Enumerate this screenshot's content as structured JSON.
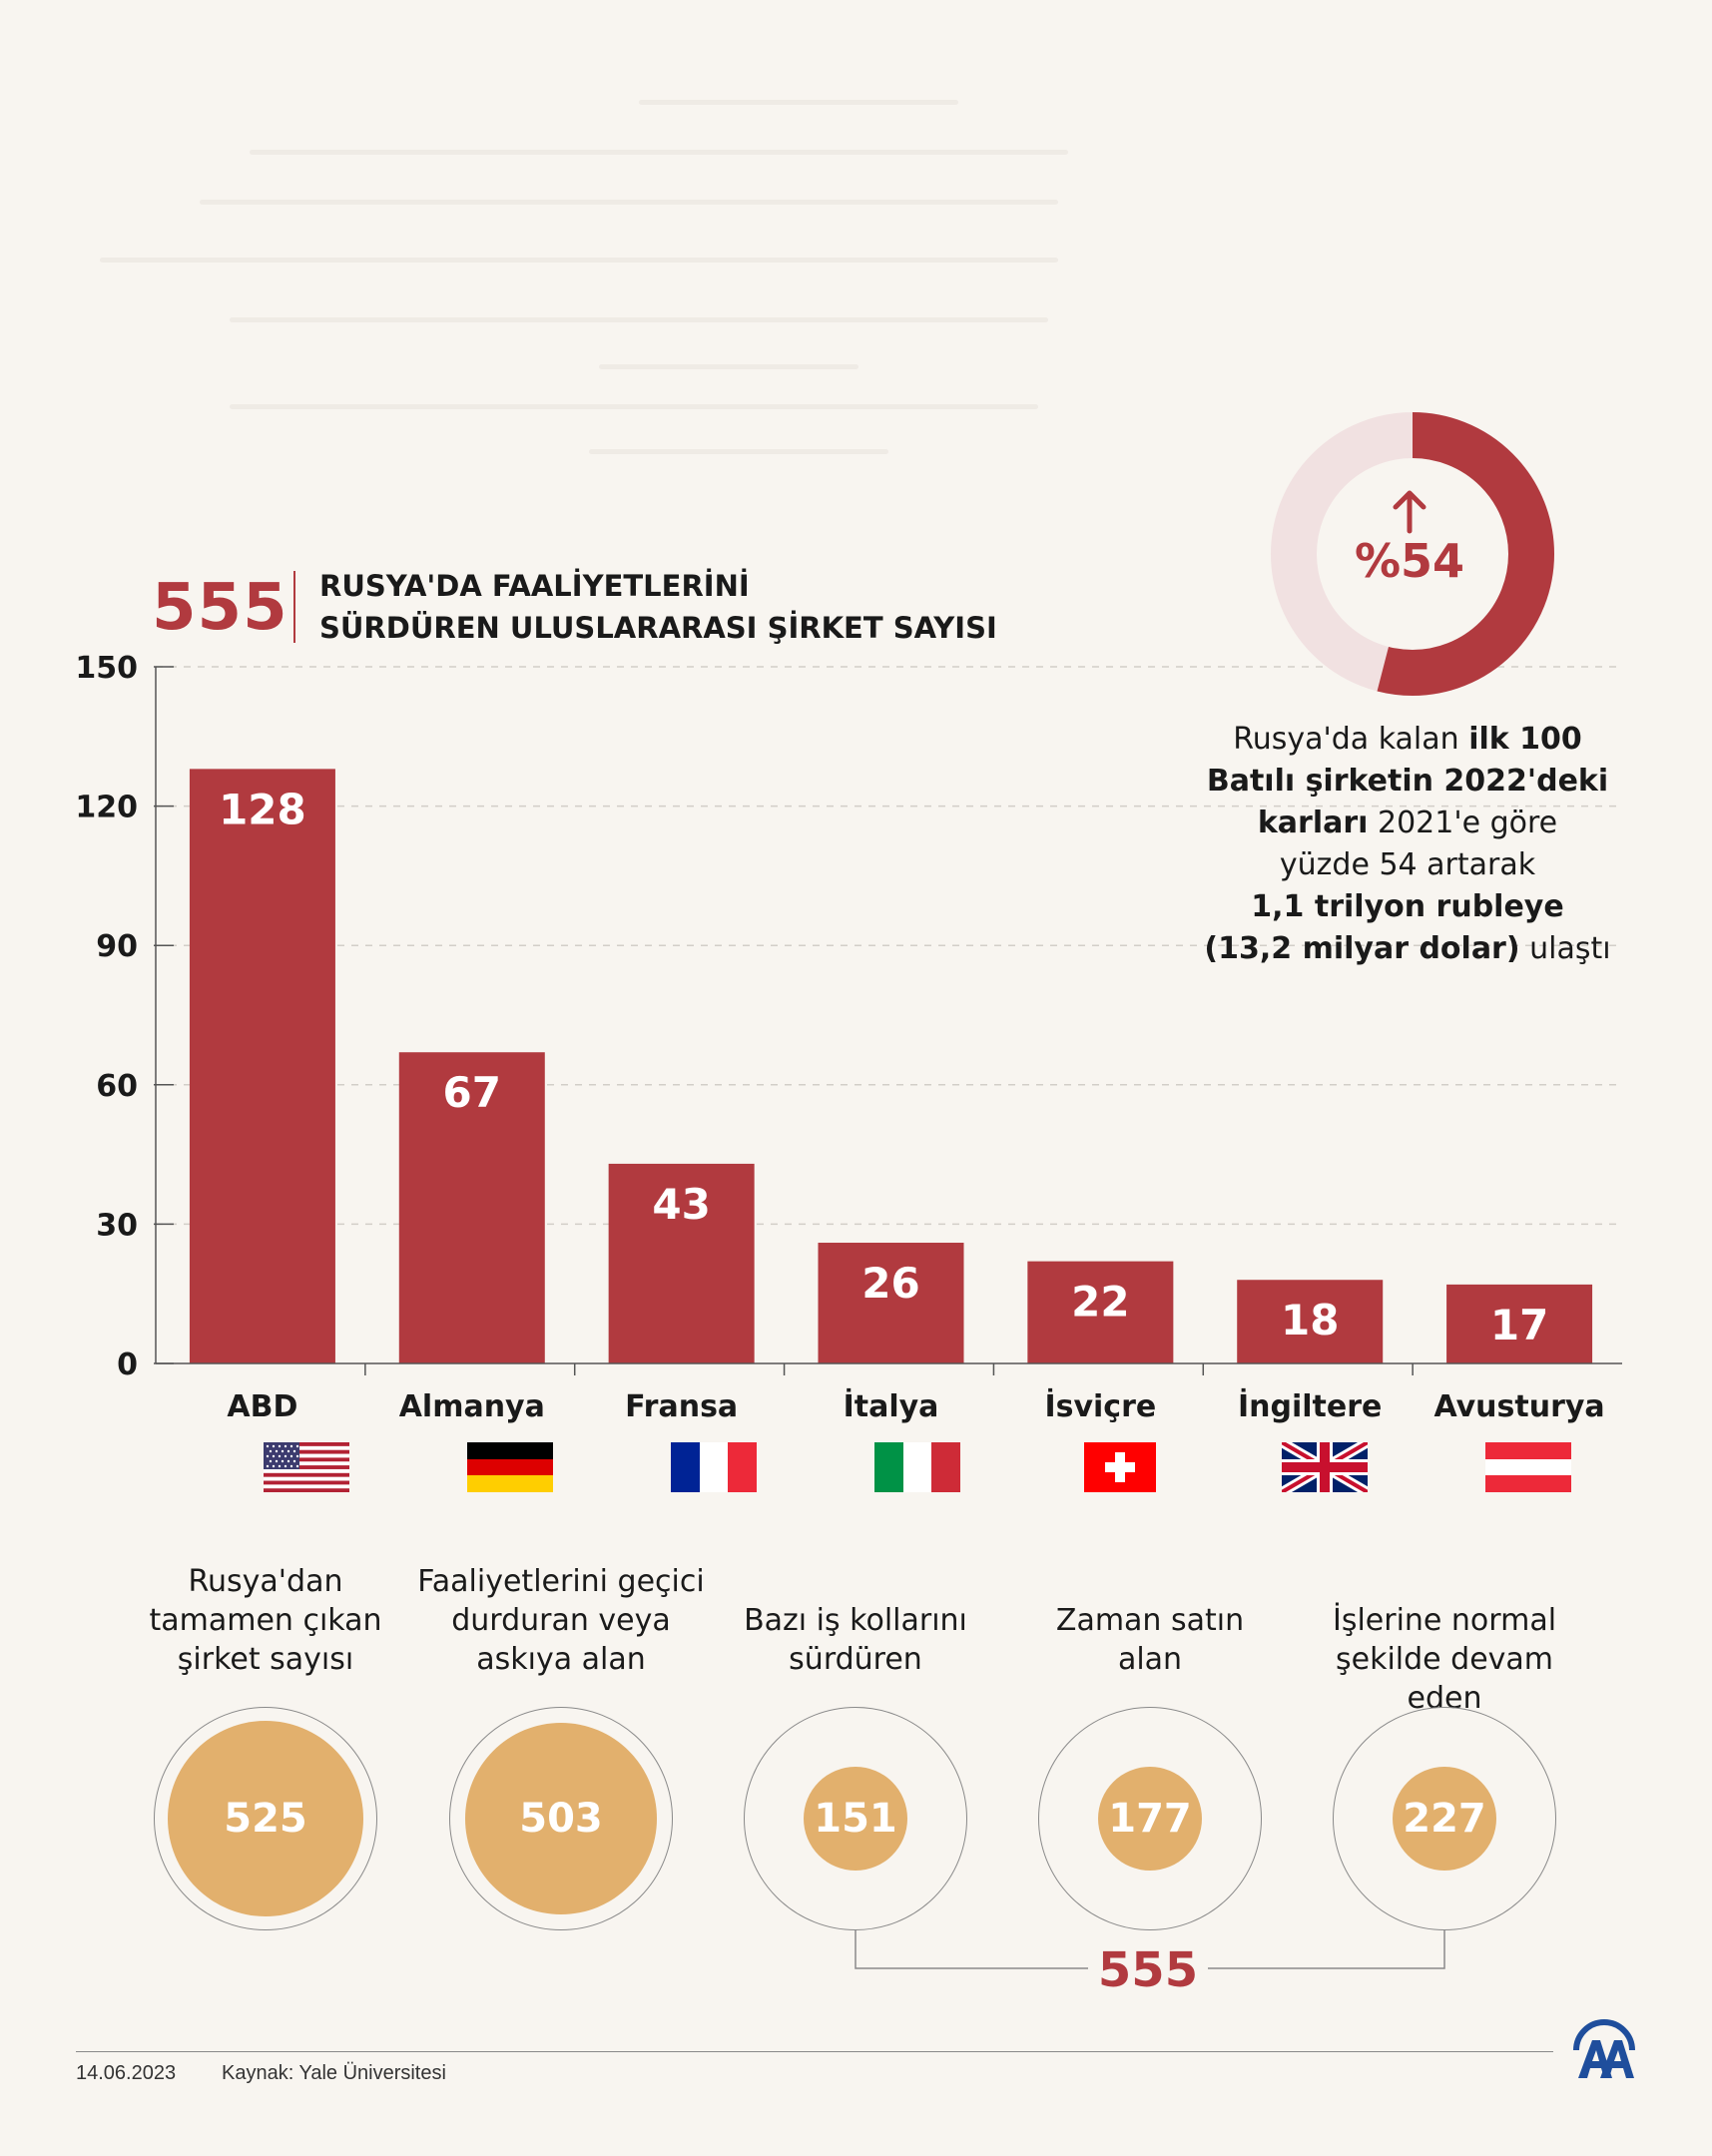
{
  "header": {
    "total": "555",
    "title_line1": "RUSYA'DA FAALİYETLERİNİ",
    "title_line2": "SÜRDÜREN ULUSLARARASI ŞİRKET SAYISI"
  },
  "chart_data": {
    "type": "bar",
    "title": "RUSYA'DA FAALİYETLERİNİ SÜRDÜREN ULUSLARARASI ŞİRKET SAYISI",
    "categories": [
      "ABD",
      "Almanya",
      "Fransa",
      "İtalya",
      "İsviçre",
      "İngiltere",
      "Avusturya"
    ],
    "values": [
      128,
      67,
      43,
      26,
      22,
      18,
      17
    ],
    "value_labels": [
      "128",
      "67",
      "43",
      "26",
      "22",
      "18",
      "17"
    ],
    "ylim": [
      0,
      150
    ],
    "yticks": [
      0,
      30,
      60,
      90,
      120,
      150
    ],
    "ytick_labels": [
      "0",
      "30",
      "60",
      "90",
      "120",
      "150"
    ],
    "grid": true,
    "bar_color": "#b13a3f"
  },
  "flags": [
    "us-flag-icon",
    "germany-flag-icon",
    "france-flag-icon",
    "italy-flag-icon",
    "switzerland-flag-icon",
    "uk-flag-icon",
    "austria-flag-icon"
  ],
  "donut": {
    "label": "%54",
    "percent": 54,
    "color": "#b13a3f",
    "track_color": "#f1e1e1",
    "icon": "arrow-up-icon"
  },
  "note": {
    "l1_a": "Rusya'da kalan ",
    "l1_b": "ilk 100",
    "l2_b": "Batılı şirketin 2022'deki",
    "l3_b": "karları",
    "l3_a": " 2021'e göre",
    "l4_a": "yüzde 54 artarak",
    "l5_b": "1,1 trilyon rubleye",
    "l6_b": "(13,2 milyar dolar)",
    "l6_a": " ulaştı"
  },
  "statuses": [
    {
      "label_lines": [
        "Rusya'dan",
        "tamamen çıkan",
        "şirket sayısı"
      ],
      "value": "525",
      "count": 525
    },
    {
      "label_lines": [
        "Faaliyetlerini geçici",
        "durduran veya",
        "askıya alan"
      ],
      "value": "503",
      "count": 503
    },
    {
      "label_lines": [
        "Bazı iş kollarını",
        "sürdüren"
      ],
      "value": "151",
      "count": 151
    },
    {
      "label_lines": [
        "Zaman satın",
        "alan"
      ],
      "value": "177",
      "count": 177
    },
    {
      "label_lines": [
        "İşlerine normal",
        "şekilde devam eden"
      ],
      "value": "227",
      "count": 227
    }
  ],
  "status_circle_color": "#e2b06d",
  "bracket_total": "555",
  "footer": {
    "date": "14.06.2023",
    "source": "Kaynak: Yale Üniversitesi",
    "logo": "aa-logo-icon"
  }
}
